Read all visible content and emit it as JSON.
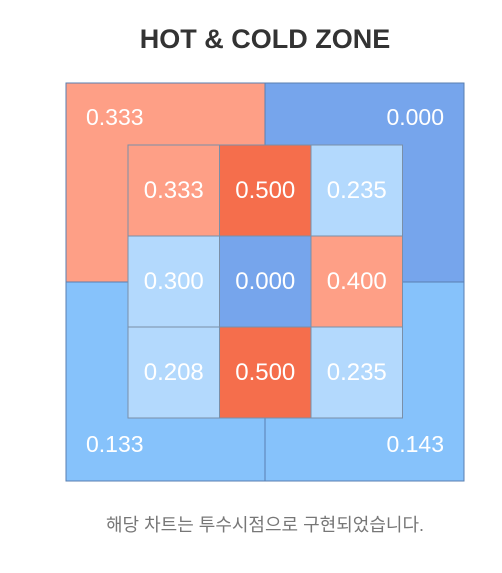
{
  "header": {
    "title": "HOT & COLD ZONE"
  },
  "outer_zones": [
    {
      "label": "0.333",
      "color": "#fe9f86"
    },
    {
      "label": "0.000",
      "color": "#76a5ec"
    },
    {
      "label": "0.133",
      "color": "#86c2fb"
    },
    {
      "label": "0.143",
      "color": "#86c2fb"
    }
  ],
  "inner_zones": [
    [
      {
        "label": "0.333",
        "color": "#fe9f86"
      },
      {
        "label": "0.500",
        "color": "#f56e4c"
      },
      {
        "label": "0.235",
        "color": "#b3d9fd"
      }
    ],
    [
      {
        "label": "0.300",
        "color": "#b3d9fd"
      },
      {
        "label": "0.000",
        "color": "#76a5ec"
      },
      {
        "label": "0.400",
        "color": "#fe9f86"
      }
    ],
    [
      {
        "label": "0.208",
        "color": "#b3d9fd"
      },
      {
        "label": "0.500",
        "color": "#f56e4c"
      },
      {
        "label": "0.235",
        "color": "#b3d9fd"
      }
    ]
  ],
  "footnote": "해당 차트는 투수시점으로 구현되었습니다."
}
